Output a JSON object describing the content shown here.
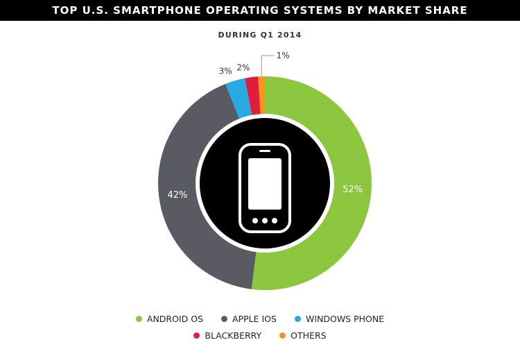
{
  "header": {
    "title": "TOP U.S. SMARTPHONE OPERATING SYSTEMS BY MARKET SHARE",
    "subtitle": "DURING Q1 2014"
  },
  "chart_data": {
    "type": "pie",
    "variant": "donut",
    "center_icon": "smartphone-icon",
    "categories": [
      "ANDROID OS",
      "APPLE IOS",
      "WINDOWS PHONE",
      "BLACKBERRY",
      "OTHERS"
    ],
    "values": [
      52,
      42,
      3,
      2,
      1
    ],
    "labels": [
      "52%",
      "42%",
      "3%",
      "2%",
      "1%"
    ],
    "colors": [
      "#8cc63f",
      "#595b63",
      "#27aae1",
      "#e01e3c",
      "#f7941d"
    ],
    "legend_placement": "bottom"
  },
  "legend": {
    "row1": [
      "ANDROID OS",
      "APPLE IOS",
      "WINDOWS PHONE"
    ],
    "row2": [
      "BLACKBERRY",
      "OTHERS"
    ]
  }
}
